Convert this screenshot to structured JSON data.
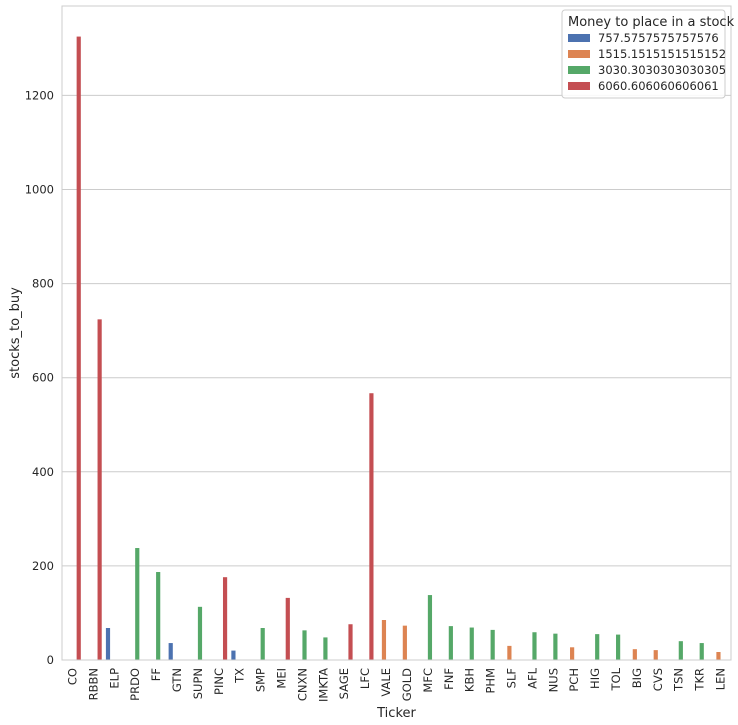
{
  "chart_data": {
    "type": "bar",
    "xlabel": "Ticker",
    "ylabel": "stocks_to_buy",
    "ylim": [
      0,
      1390
    ],
    "yticks": [
      0,
      200,
      400,
      600,
      800,
      1000,
      1200
    ],
    "grid": "horizontal",
    "legend_placement": "top-right",
    "legend_title": "Money to place in a stock",
    "series": [
      {
        "name": "757.5757575757576",
        "color": "#4c72b0"
      },
      {
        "name": "1515.1515151515152",
        "color": "#dd8452"
      },
      {
        "name": "3030.3030303030305",
        "color": "#55a868"
      },
      {
        "name": "6060.606060606061",
        "color": "#c44e52"
      }
    ],
    "categories": [
      "CO",
      "RBBN",
      "ELP",
      "PRDO",
      "FF",
      "GTN",
      "SUPN",
      "PINC",
      "TX",
      "SMP",
      "MEI",
      "CNXN",
      "IMKTA",
      "SAGE",
      "LFC",
      "VALE",
      "GOLD",
      "MFC",
      "FNF",
      "KBH",
      "PHM",
      "SLF",
      "AFL",
      "NUS",
      "PCH",
      "HIG",
      "TOL",
      "BIG",
      "CVS",
      "TSN",
      "TKR",
      "LEN"
    ],
    "bars": [
      {
        "ticker": "CO",
        "series": 3,
        "value": 1325
      },
      {
        "ticker": "RBBN",
        "series": 3,
        "value": 724
      },
      {
        "ticker": "ELP",
        "series": 0,
        "value": 68
      },
      {
        "ticker": "PRDO",
        "series": 2,
        "value": 238
      },
      {
        "ticker": "FF",
        "series": 2,
        "value": 187
      },
      {
        "ticker": "GTN",
        "series": 0,
        "value": 36
      },
      {
        "ticker": "SUPN",
        "series": 2,
        "value": 113
      },
      {
        "ticker": "PINC",
        "series": 3,
        "value": 176
      },
      {
        "ticker": "TX",
        "series": 0,
        "value": 20
      },
      {
        "ticker": "SMP",
        "series": 2,
        "value": 68
      },
      {
        "ticker": "MEI",
        "series": 3,
        "value": 132
      },
      {
        "ticker": "CNXN",
        "series": 2,
        "value": 63
      },
      {
        "ticker": "IMKTA",
        "series": 2,
        "value": 48
      },
      {
        "ticker": "SAGE",
        "series": 3,
        "value": 76
      },
      {
        "ticker": "LFC",
        "series": 3,
        "value": 567
      },
      {
        "ticker": "VALE",
        "series": 1,
        "value": 85
      },
      {
        "ticker": "GOLD",
        "series": 1,
        "value": 73
      },
      {
        "ticker": "MFC",
        "series": 2,
        "value": 138
      },
      {
        "ticker": "FNF",
        "series": 2,
        "value": 72
      },
      {
        "ticker": "KBH",
        "series": 2,
        "value": 69
      },
      {
        "ticker": "PHM",
        "series": 2,
        "value": 64
      },
      {
        "ticker": "SLF",
        "series": 1,
        "value": 30
      },
      {
        "ticker": "AFL",
        "series": 2,
        "value": 59
      },
      {
        "ticker": "NUS",
        "series": 2,
        "value": 56
      },
      {
        "ticker": "PCH",
        "series": 1,
        "value": 27
      },
      {
        "ticker": "HIG",
        "series": 2,
        "value": 55
      },
      {
        "ticker": "TOL",
        "series": 2,
        "value": 54
      },
      {
        "ticker": "BIG",
        "series": 1,
        "value": 23
      },
      {
        "ticker": "CVS",
        "series": 1,
        "value": 21
      },
      {
        "ticker": "TSN",
        "series": 2,
        "value": 40
      },
      {
        "ticker": "TKR",
        "series": 2,
        "value": 36
      },
      {
        "ticker": "LEN",
        "series": 1,
        "value": 17
      }
    ]
  }
}
